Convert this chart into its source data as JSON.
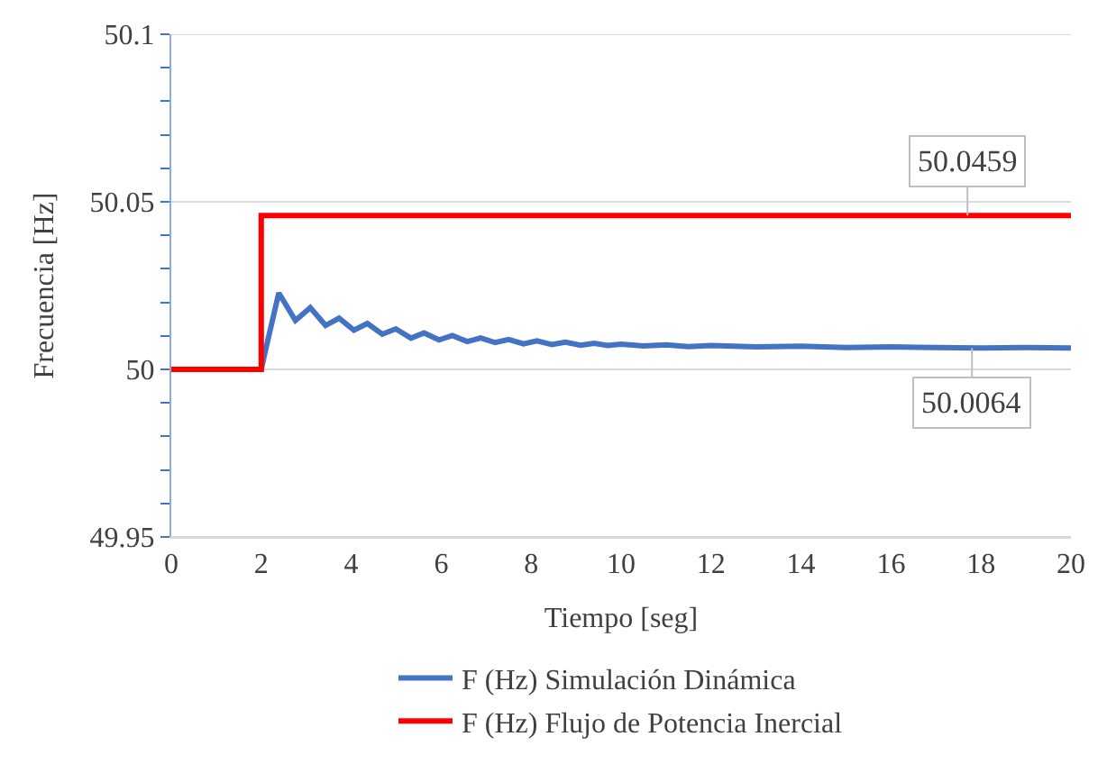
{
  "chart_data": {
    "type": "line",
    "xlabel": "Tiempo [seg]",
    "ylabel": "Frecuencia [Hz]",
    "xlim": [
      0,
      20
    ],
    "xticks": [
      0,
      2,
      4,
      6,
      8,
      10,
      12,
      14,
      16,
      18,
      20
    ],
    "ylim": [
      49.95,
      50.1
    ],
    "yticks": [
      49.95,
      {
        "value": 49.96,
        "label": null
      },
      {
        "value": 49.97,
        "label": null
      },
      {
        "value": 49.98,
        "label": null
      },
      {
        "value": 49.99,
        "label": null
      },
      50,
      {
        "value": 50.01,
        "label": null
      },
      {
        "value": 50.02,
        "label": null
      },
      {
        "value": 50.03,
        "label": null
      },
      {
        "value": 50.04,
        "label": null
      },
      50.05,
      {
        "value": 50.06,
        "label": null
      },
      {
        "value": 50.07,
        "label": null
      },
      {
        "value": 50.08,
        "label": null
      },
      {
        "value": 50.09,
        "label": null
      },
      50.1
    ],
    "grid": "y",
    "legend": "bottom",
    "marker": "none",
    "line_style": "solid",
    "series": [
      {
        "name": "F (Hz) Simulación Dinámica",
        "color": "#4472c4",
        "x": [
          0,
          2,
          2.1,
          2.39,
          2.76,
          3.09,
          3.43,
          3.73,
          4.06,
          4.36,
          4.69,
          4.99,
          5.33,
          5.62,
          5.95,
          6.25,
          6.58,
          6.88,
          7.2,
          7.5,
          7.83,
          8.13,
          8.46,
          8.76,
          9.1,
          9.4,
          9.7,
          10,
          10.5,
          11,
          11.5,
          12,
          13,
          14,
          15,
          16,
          17,
          18,
          19,
          20
        ],
        "values": [
          50,
          50,
          50.006,
          50.0228,
          50.0146,
          50.0184,
          50.0131,
          50.0153,
          50.0117,
          50.0137,
          50.0105,
          50.0121,
          50.0093,
          50.0109,
          50.0088,
          50.0101,
          50.0083,
          50.0094,
          50.008,
          50.0089,
          50.0076,
          50.0085,
          50.0074,
          50.0081,
          50.0072,
          50.0078,
          50.0071,
          50.0075,
          50.007,
          50.0073,
          50.0068,
          50.0071,
          50.0067,
          50.0069,
          50.0065,
          50.0067,
          50.0065,
          50.0064,
          50.0065,
          50.0064
        ]
      },
      {
        "name": "F (Hz) Flujo de Potencia Inercial",
        "color": "#ff0000",
        "x": [
          0,
          2,
          2,
          20
        ],
        "values": [
          50,
          50,
          50.0459,
          50.0459
        ]
      }
    ],
    "annotations": [
      {
        "text": "50.0459",
        "x": 17.7,
        "y": 50.0459
      },
      {
        "text": "50.0064",
        "x": 17.8,
        "y": 50.0064
      }
    ]
  }
}
